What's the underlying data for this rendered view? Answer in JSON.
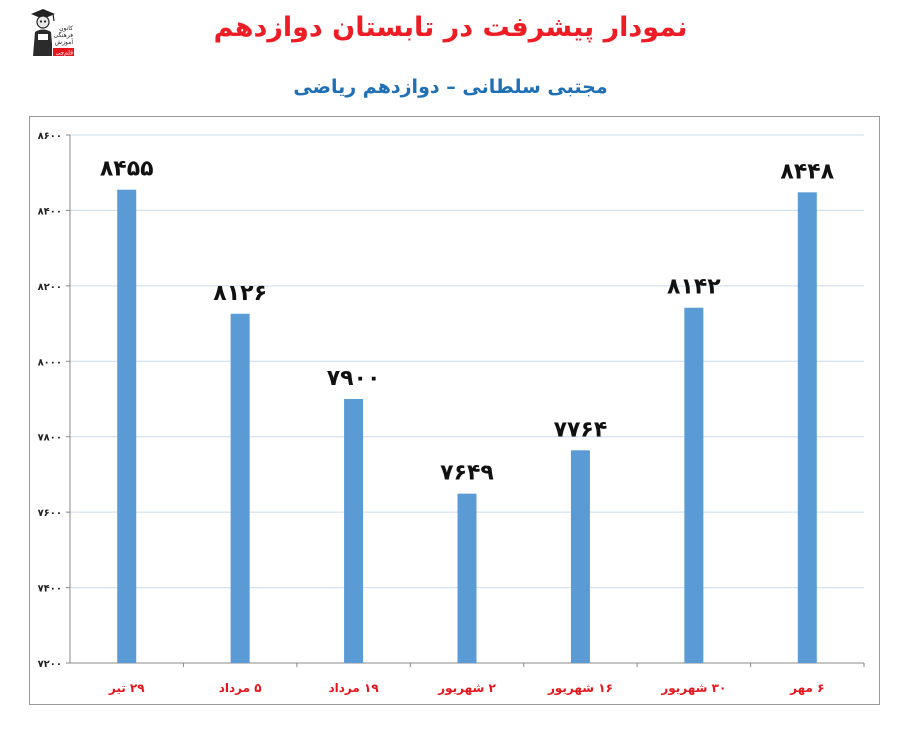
{
  "header": {
    "title": "نمودار پیشرفت در تابستان دوازدهم",
    "subtitle": "مجتبی سلطانی – دوازدهم ریاضی",
    "logo_icon": "graduate-mascot-logo",
    "logo_lines": [
      "کانون",
      "فرهنگی",
      "آموزش",
      "قلم‌چی"
    ]
  },
  "chart_data": {
    "type": "bar",
    "categories": [
      "۲۹ تیر",
      "۵ مرداد",
      "۱۹ مرداد",
      "۲ شهریور",
      "۱۶ شهریور",
      "۳۰ شهریور",
      "۶ مهر"
    ],
    "values": [
      8455,
      8126,
      7900,
      7649,
      7764,
      8142,
      8448
    ],
    "value_labels": [
      "۸۴۵۵",
      "۸۱۲۶",
      "۷۹۰۰",
      "۷۶۴۹",
      "۷۷۶۴",
      "۸۱۴۲",
      "۸۴۴۸"
    ],
    "ylim": [
      7200,
      8600
    ],
    "yticks": [
      7200,
      7400,
      7600,
      7800,
      8000,
      8200,
      8400,
      8600
    ],
    "ytick_labels": [
      "۷۲۰۰",
      "۷۴۰۰",
      "۷۶۰۰",
      "۷۸۰۰",
      "۸۰۰۰",
      "۸۲۰۰",
      "۸۴۰۰",
      "۸۶۰۰"
    ],
    "grid": true,
    "legend": "none",
    "colors": {
      "bar": "#5b9bd5",
      "grid": "#c9dcee",
      "category_label": "#e8141c",
      "title": "#ee1c24",
      "subtitle": "#1f6fb5"
    }
  }
}
